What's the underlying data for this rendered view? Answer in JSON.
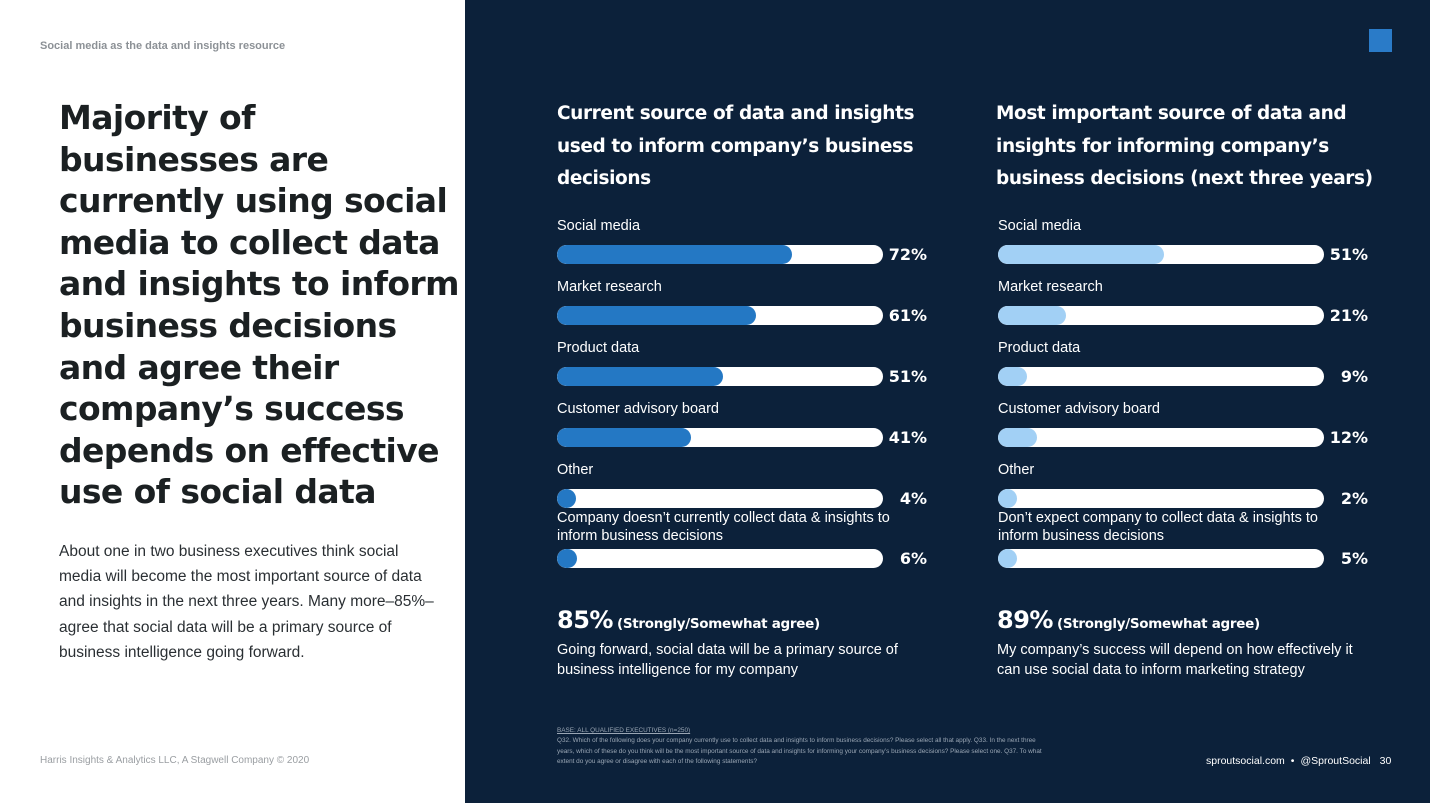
{
  "section_label": "Social media as the data and insights resource",
  "headline": "Majority of businesses are currently using social media to collect data and insights to inform business decisions and agree their company’s success depends on effective use of social data",
  "body_text": "About one in two business executives think social media will become the most important source of data and insights in the next three years. Many more–85%–agree that social data will be a primary source of business intelligence going forward.",
  "left_footer": "Harris Insights & Analytics LLC, A Stagwell Company © 2020",
  "colors": {
    "navy_background": "#0c213a",
    "current_bar": "#2478c4",
    "future_bar": "#a2d0f5",
    "brand_square": "#2a7bc8"
  },
  "chart_data": [
    {
      "type": "bar",
      "orientation": "horizontal",
      "title": "Current source of data and insights used to inform company’s business decisions",
      "categories": [
        "Social media",
        "Market research",
        "Product data",
        "Customer advisory board",
        "Other",
        "Company doesn’t currently collect data & insights to inform business decisions"
      ],
      "values": [
        72,
        61,
        51,
        41,
        4,
        6
      ],
      "value_labels": [
        "72%",
        "61%",
        "51%",
        "41%",
        "4%",
        "6%"
      ],
      "xlim": [
        0,
        100
      ],
      "unit": "%",
      "grid": false,
      "legend": "none"
    },
    {
      "type": "bar",
      "orientation": "horizontal",
      "title": "Most important source of data and insights for informing company’s business decisions (next three years)",
      "categories": [
        "Social media",
        "Market research",
        "Product data",
        "Customer advisory board",
        "Other",
        "Don’t expect company to collect data & insights to inform business decisions"
      ],
      "values": [
        51,
        21,
        9,
        12,
        2,
        5
      ],
      "value_labels": [
        "51%",
        "21%",
        "9%",
        "12%",
        "2%",
        "5%"
      ],
      "xlim": [
        0,
        100
      ],
      "unit": "%",
      "grid": false,
      "legend": "none"
    }
  ],
  "stats": [
    {
      "value": "85%",
      "qualifier": "(Strongly/Somewhat agree)",
      "description": "Going forward, social data will be a primary source of business intelligence for my company"
    },
    {
      "value": "89%",
      "qualifier": "(Strongly/Somewhat agree)",
      "description": "My company’s success will depend on how effectively it can use social data to inform marketing strategy"
    }
  ],
  "base_note": {
    "heading": "BASE: ALL QUALIFIED EXECUTIVES (n=250)",
    "text": "Q32. Which of the following does your company currently use to collect data and insights to inform business decisions? Please select all that apply. Q33. In the next three years, which of these do you think will be the most important source of data and insights for informing your company’s business decisions? Please select one. Q37. To what extent do you agree or disagree with each of the following statements?"
  },
  "right_footer": {
    "website": "sproutsocial.com",
    "separator": "•",
    "handle": "@SproutSocial",
    "page_number": "30"
  },
  "icons": {
    "brand_mark": "square-icon"
  }
}
